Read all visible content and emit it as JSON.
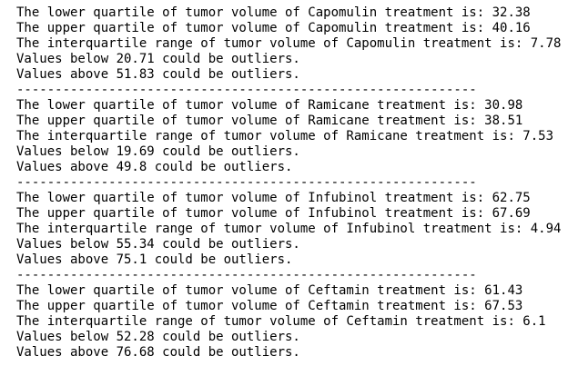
{
  "lines": [
    "The lower quartile of tumor volume of Capomulin treatment is: 32.38",
    "The upper quartile of tumor volume of Capomulin treatment is: 40.16",
    "The interquartile range of tumor volume of Capomulin treatment is: 7.78",
    "Values below 20.71 could be outliers.",
    "Values above 51.83 could be outliers.",
    "------------------------------------------------------------",
    "The lower quartile of tumor volume of Ramicane treatment is: 30.98",
    "The upper quartile of tumor volume of Ramicane treatment is: 38.51",
    "The interquartile range of tumor volume of Ramicane treatment is: 7.53",
    "Values below 19.69 could be outliers.",
    "Values above 49.8 could be outliers.",
    "------------------------------------------------------------",
    "The lower quartile of tumor volume of Infubinol treatment is: 62.75",
    "The upper quartile of tumor volume of Infubinol treatment is: 67.69",
    "The interquartile range of tumor volume of Infubinol treatment is: 4.94",
    "Values below 55.34 could be outliers.",
    "Values above 75.1 could be outliers.",
    "------------------------------------------------------------",
    "The lower quartile of tumor volume of Ceftamin treatment is: 61.43",
    "The upper quartile of tumor volume of Ceftamin treatment is: 67.53",
    "The interquartile range of tumor volume of Ceftamin treatment is: 6.1",
    "Values below 52.28 could be outliers.",
    "Values above 76.68 could be outliers."
  ]
}
